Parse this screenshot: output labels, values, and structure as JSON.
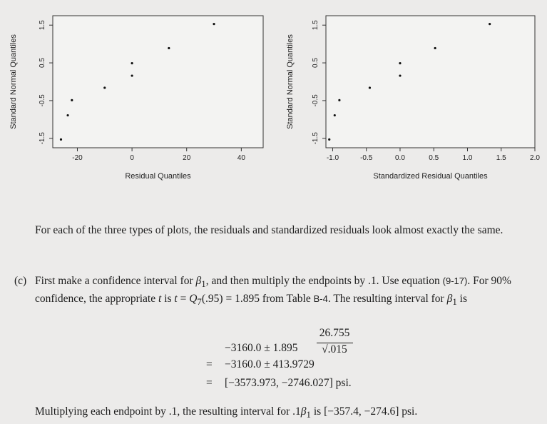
{
  "plots": [
    {
      "id": "left",
      "xlabel": "Residual Quantiles",
      "ylabel": "Standard Normal Quantiles",
      "xticks": [
        "-20",
        "0",
        "20",
        "40"
      ],
      "xtick_values": [
        -20,
        0,
        20,
        40
      ],
      "yticks": [
        "-1.5",
        "-0.5",
        "0.5",
        "1.5"
      ],
      "ytick_values": [
        -1.5,
        -0.5,
        0.5,
        1.5
      ],
      "xlim": [
        -29,
        48
      ],
      "ylim": [
        -1.75,
        1.75
      ],
      "points": [
        {
          "x": -26,
          "y": -1.53
        },
        {
          "x": -23.5,
          "y": -0.89
        },
        {
          "x": -22,
          "y": -0.49
        },
        {
          "x": -10,
          "y": -0.16
        },
        {
          "x": 0,
          "y": 0.16
        },
        {
          "x": 0,
          "y": 0.49
        },
        {
          "x": 13.5,
          "y": 0.89
        },
        {
          "x": 30,
          "y": 1.53
        }
      ]
    },
    {
      "id": "right",
      "xlabel": "Standardized Residual Quantiles",
      "ylabel": "Standard Normal Quantiles",
      "xticks": [
        "-1.0",
        "-0.5",
        "0.0",
        "0.5",
        "1.0",
        "1.5",
        "2.0"
      ],
      "xtick_values": [
        -1.0,
        -0.5,
        0.0,
        0.5,
        1.0,
        1.5,
        2.0
      ],
      "yticks": [
        "-1.5",
        "-0.5",
        "0.5",
        "1.5"
      ],
      "ytick_values": [
        -1.5,
        -0.5,
        0.5,
        1.5
      ],
      "xlim": [
        -1.1,
        2.0
      ],
      "ylim": [
        -1.75,
        1.75
      ],
      "points": [
        {
          "x": -1.05,
          "y": -1.53
        },
        {
          "x": -0.97,
          "y": -0.89
        },
        {
          "x": -0.9,
          "y": -0.49
        },
        {
          "x": -0.45,
          "y": -0.16
        },
        {
          "x": 0.0,
          "y": 0.16
        },
        {
          "x": 0.0,
          "y": 0.49
        },
        {
          "x": 0.52,
          "y": 0.89
        },
        {
          "x": 1.33,
          "y": 1.53
        }
      ]
    }
  ],
  "text": {
    "p1": "For each of the three types of plots, the residuals and standardized residuals look almost exactly the same.",
    "p2_marker": "(c)",
    "p2_a": "First make a confidence interval for ",
    "p2_b": ", and then multiply the endpoints by .1. Use equation ",
    "p2_eqref": "(9-17)",
    "p2_c": ". For 90% confidence, the appropriate ",
    "p2_d": " is ",
    "p2_e": "(.95) = 1.895 from Table ",
    "p2_table": "B-4",
    "p2_f": ". The resulting interval for ",
    "p2_g": " is",
    "p3_a": "Multiplying each endpoint by .1, the resulting interval for .1",
    "p3_b": " is [−357.4, −274.6] psi."
  },
  "math": {
    "beta1": "β",
    "sub1": "1",
    "t": "t",
    "Q": "Q",
    "sub7": "7",
    "eq1_lead": "−3160.0 ± 1.895",
    "eq1_num": "26.755",
    "eq1_den": "√.015",
    "eq_sign": "=",
    "eq2": "−3160.0 ± 413.9729",
    "eq3": "[−3573.973, −2746.027] psi."
  }
}
